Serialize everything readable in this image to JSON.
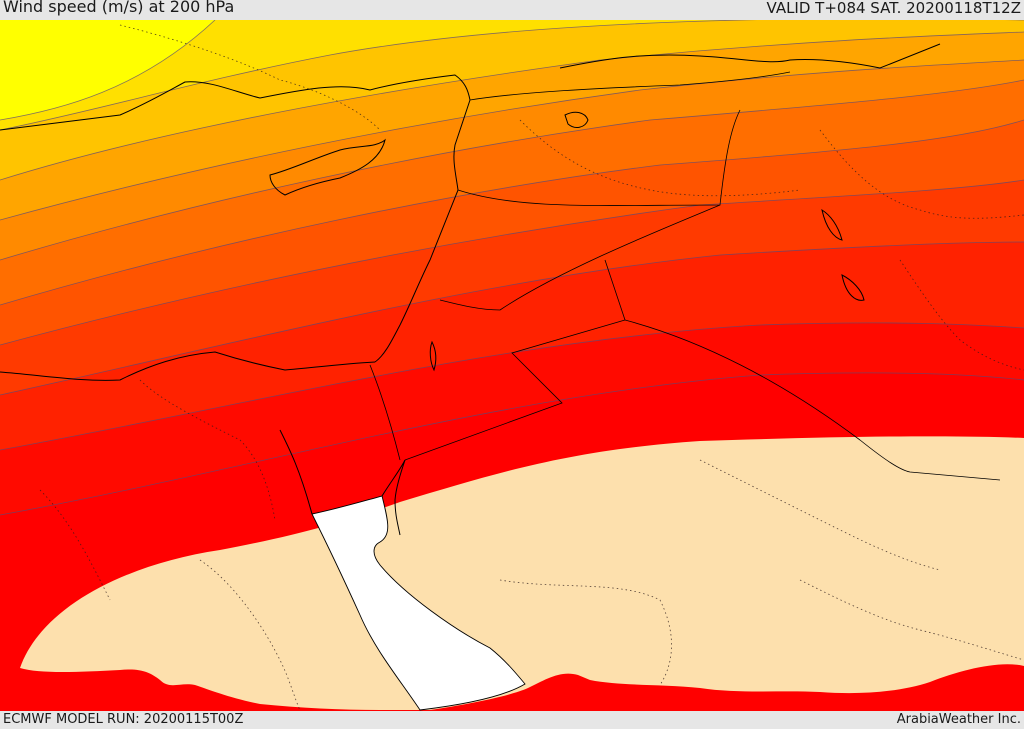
{
  "header": {
    "title": "Wind speed (m/s) at 200 hPa",
    "valid_time": "VALID T+084 SAT. 20200118T12Z"
  },
  "footer": {
    "model_run": "ECMWF MODEL RUN: 20200115T00Z",
    "credit": "ArabiaWeather Inc."
  },
  "map": {
    "variable": "wind speed",
    "level_hpa": 200,
    "units": "m/s",
    "colors": {
      "band_1": "#ffff00",
      "band_2": "#ffe000",
      "band_3": "#ffc400",
      "band_4": "#ffa500",
      "band_5": "#ff8a00",
      "band_6": "#ff6e00",
      "band_7": "#ff5400",
      "band_8": "#ff3a00",
      "band_9": "#ff2200",
      "band_10": "#ff0a00",
      "band_11": "#ff0000",
      "below_threshold": "#fde0ad",
      "sea": "#ffffff",
      "contour_line": "#5a4a78",
      "coastline": "#000000"
    }
  }
}
